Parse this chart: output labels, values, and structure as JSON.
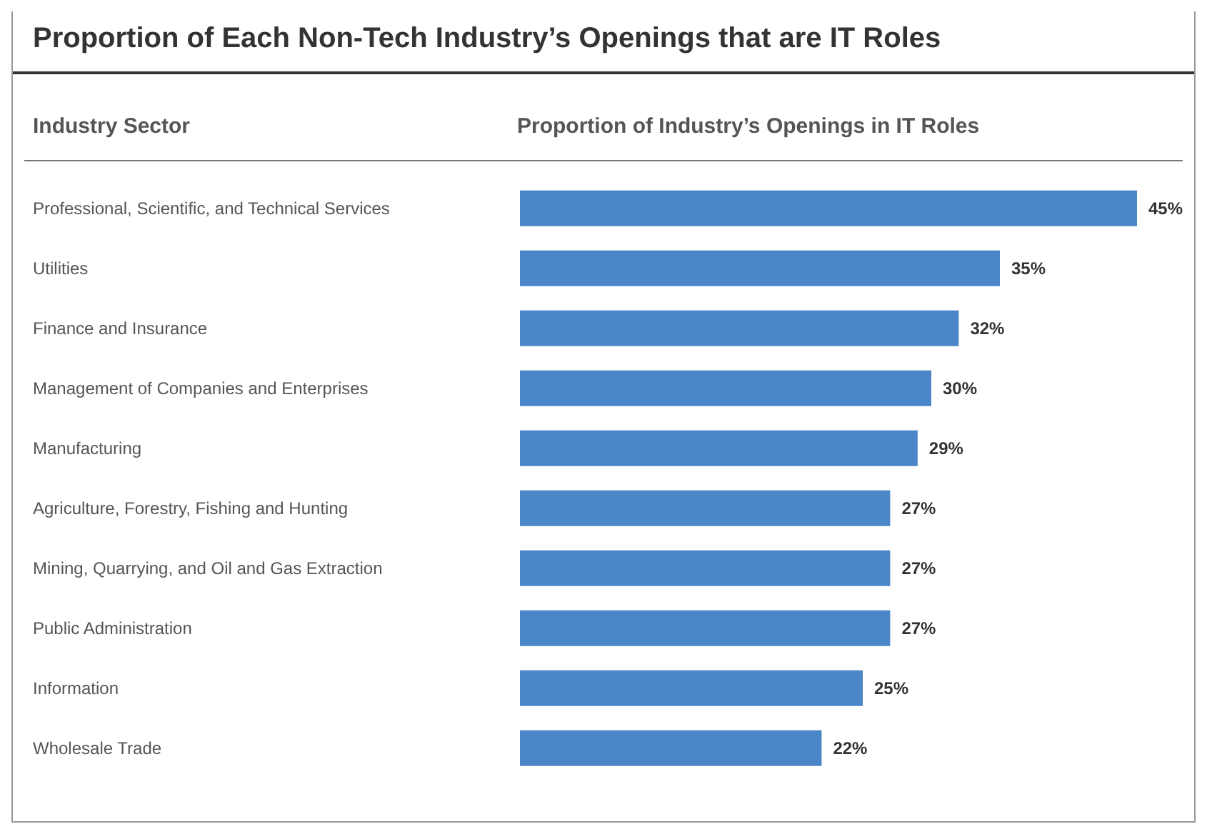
{
  "chart_data": {
    "type": "bar",
    "orientation": "horizontal",
    "title": "Proportion of Each Non-Tech Industry’s Openings that are IT Roles",
    "ylabel": "Industry Sector",
    "xlabel": "Proportion of Industry’s Openings in IT Roles",
    "categories": [
      "Professional, Scientific, and Technical Services",
      "Utilities",
      "Finance and Insurance",
      "Management of Companies and Enterprises",
      "Manufacturing",
      "Agriculture, Forestry, Fishing and Hunting",
      "Mining, Quarrying, and Oil and Gas Extraction",
      "Public Administration",
      "Information",
      "Wholesale Trade"
    ],
    "values": [
      45,
      35,
      32,
      30,
      29,
      27,
      27,
      27,
      25,
      22
    ],
    "value_labels": [
      "45%",
      "35%",
      "32%",
      "30%",
      "29%",
      "27%",
      "27%",
      "27%",
      "25%",
      "22%"
    ],
    "color": "#4a86c8"
  }
}
